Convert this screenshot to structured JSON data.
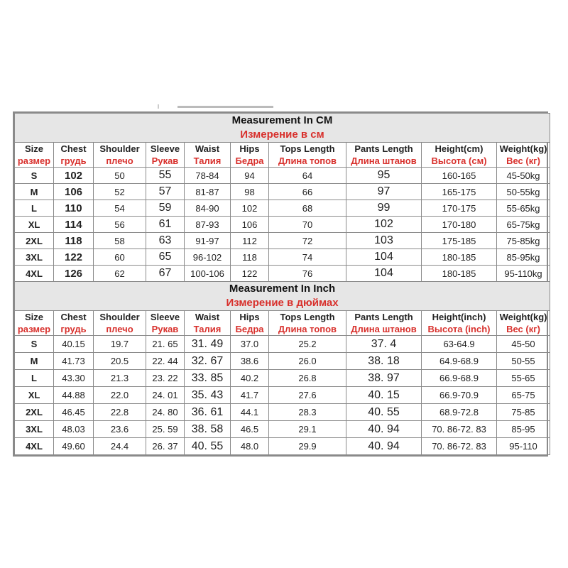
{
  "colors": {
    "header_red": "#d8302c",
    "title_bg": "#e6e6e6",
    "border": "#8a8a8a"
  },
  "cm_table": {
    "title_en": "Measurement In CM",
    "title_ru": "Измерение в см",
    "headers": [
      {
        "en": "Size",
        "ru": "размер"
      },
      {
        "en": "Chest",
        "ru": "грудь"
      },
      {
        "en": "Shoulder",
        "ru": "плечо"
      },
      {
        "en": "Sleeve",
        "ru": "Рукав"
      },
      {
        "en": "Waist",
        "ru": "Талия"
      },
      {
        "en": "Hips",
        "ru": "Бедра"
      },
      {
        "en": "Tops Length",
        "ru": "Длина топов"
      },
      {
        "en": "Pants Length",
        "ru": "Длина штанов"
      },
      {
        "en": "Height(cm)",
        "ru": "Высота (см)"
      },
      {
        "en": "Weight(kg)",
        "ru": "Вес (кг)"
      }
    ],
    "rows": [
      [
        "S",
        "102",
        "50",
        "55",
        "78-84",
        "94",
        "64",
        "95",
        "160-165",
        "45-50kg"
      ],
      [
        "M",
        "106",
        "52",
        "57",
        "81-87",
        "98",
        "66",
        "97",
        "165-175",
        "50-55kg"
      ],
      [
        "L",
        "110",
        "54",
        "59",
        "84-90",
        "102",
        "68",
        "99",
        "170-175",
        "55-65kg"
      ],
      [
        "XL",
        "114",
        "56",
        "61",
        "87-93",
        "106",
        "70",
        "102",
        "170-180",
        "65-75kg"
      ],
      [
        "2XL",
        "118",
        "58",
        "63",
        "91-97",
        "112",
        "72",
        "103",
        "175-185",
        "75-85kg"
      ],
      [
        "3XL",
        "122",
        "60",
        "65",
        "96-102",
        "118",
        "74",
        "104",
        "180-185",
        "85-95kg"
      ],
      [
        "4XL",
        "126",
        "62",
        "67",
        "100-106",
        "122",
        "76",
        "104",
        "180-185",
        "95-110kg"
      ]
    ]
  },
  "inch_table": {
    "title_en": "Measurement In Inch",
    "title_ru": "Измерение в дюймах",
    "headers": [
      {
        "en": "Size",
        "ru": "размер"
      },
      {
        "en": "Chest",
        "ru": "грудь"
      },
      {
        "en": "Shoulder",
        "ru": "плечо"
      },
      {
        "en": "Sleeve",
        "ru": "Рукав"
      },
      {
        "en": "Waist",
        "ru": "Талия"
      },
      {
        "en": "Hips",
        "ru": "Бедра"
      },
      {
        "en": "Tops Length",
        "ru": "Длина топов"
      },
      {
        "en": "Pants Length",
        "ru": "Длина штанов"
      },
      {
        "en": "Height(inch)",
        "ru": "Высота (inch)"
      },
      {
        "en": "Weight(kg)",
        "ru": "Вес (кг)"
      }
    ],
    "rows": [
      [
        "S",
        "40.15",
        "19.7",
        "21. 65",
        "31. 49",
        "37.0",
        "25.2",
        "37. 4",
        "63-64.9",
        "45-50"
      ],
      [
        "M",
        "41.73",
        "20.5",
        "22. 44",
        "32. 67",
        "38.6",
        "26.0",
        "38. 18",
        "64.9-68.9",
        "50-55"
      ],
      [
        "L",
        "43.30",
        "21.3",
        "23. 22",
        "33. 85",
        "40.2",
        "26.8",
        "38. 97",
        "66.9-68.9",
        "55-65"
      ],
      [
        "XL",
        "44.88",
        "22.0",
        "24. 01",
        "35. 43",
        "41.7",
        "27.6",
        "40. 15",
        "66.9-70.9",
        "65-75"
      ],
      [
        "2XL",
        "46.45",
        "22.8",
        "24. 80",
        "36. 61",
        "44.1",
        "28.3",
        "40. 55",
        "68.9-72.8",
        "75-85"
      ],
      [
        "3XL",
        "48.03",
        "23.6",
        "25. 59",
        "38. 58",
        "46.5",
        "29.1",
        "40. 94",
        "70. 86-72. 83",
        "85-95"
      ],
      [
        "4XL",
        "49.60",
        "24.4",
        "26. 37",
        "40. 55",
        "48.0",
        "29.9",
        "40. 94",
        "70. 86-72. 83",
        "95-110"
      ]
    ]
  }
}
